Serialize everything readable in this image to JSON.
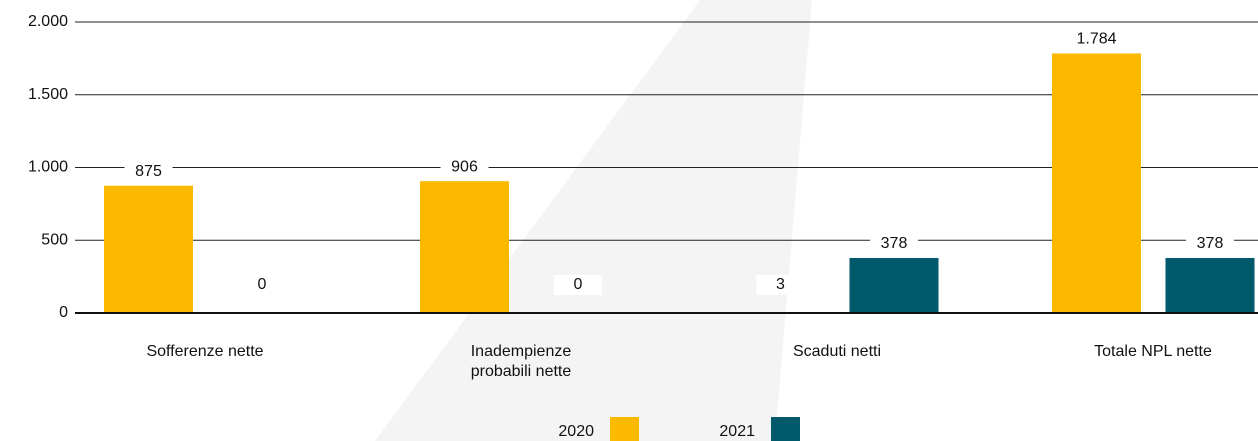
{
  "chart_data": {
    "type": "bar",
    "categories": [
      "Sofferenze nette",
      "Inadempienze probabili nette",
      "Scaduti netti",
      "Totale NPL nette"
    ],
    "series": [
      {
        "name": "2020",
        "color": "#fbb900",
        "values": [
          875,
          906,
          3,
          1784
        ],
        "value_labels": [
          "875",
          "906",
          "3",
          "1.784"
        ]
      },
      {
        "name": "2021",
        "color": "#005a6c",
        "values": [
          0,
          0,
          378,
          378
        ]
      }
    ],
    "ylim": [
      0,
      2000
    ],
    "yticks": [
      0,
      500,
      {
        "value": 1000,
        "label": "1.000"
      },
      {
        "value": 1500,
        "label": "1.500"
      },
      {
        "value": 2000,
        "label": "2.000"
      }
    ],
    "grid": true
  }
}
